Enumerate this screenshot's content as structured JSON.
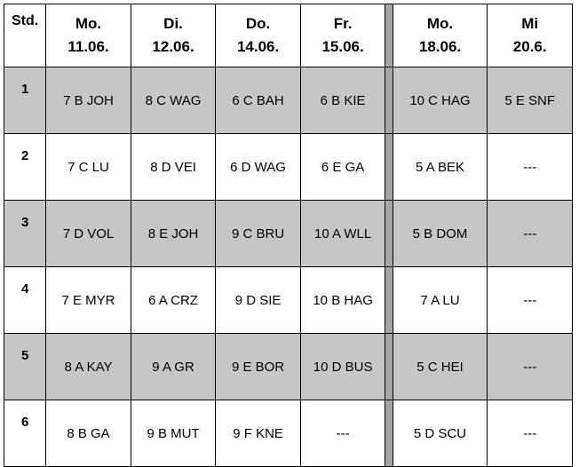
{
  "header": {
    "std": "Std.",
    "days": [
      {
        "name": "Mo.",
        "date": "11.06."
      },
      {
        "name": "Di.",
        "date": "12.06."
      },
      {
        "name": "Do.",
        "date": "14.06."
      },
      {
        "name": "Fr.",
        "date": "15.06."
      },
      {
        "name": "Mo.",
        "date": "18.06."
      },
      {
        "name": "Mi",
        "date": "20.6."
      }
    ]
  },
  "rows": [
    {
      "period": "1",
      "cells": [
        "7 B  JOH",
        "8 C  WAG",
        "6 C  BAH",
        "6 B  KIE",
        "10 C  HAG",
        "5 E  SNF"
      ]
    },
    {
      "period": "2",
      "cells": [
        "7 C  LU",
        "8 D  VEI",
        "6 D  WAG",
        "6 E  GA",
        "5 A  BEK",
        "---"
      ]
    },
    {
      "period": "3",
      "cells": [
        "7 D  VOL",
        "8 E  JOH",
        "9 C  BRU",
        "10 A  WLL",
        "5 B  DOM",
        "---"
      ]
    },
    {
      "period": "4",
      "cells": [
        "7 E  MYR",
        "6 A  CRZ",
        "9 D  SIE",
        "10 B  HAG",
        "7 A  LU",
        "---"
      ]
    },
    {
      "period": "5",
      "cells": [
        "8 A  KAY",
        "9 A  GR",
        "9 E BOR",
        "10 D  BUS",
        "5 C  HEI",
        "---"
      ]
    },
    {
      "period": "6",
      "cells": [
        "8 B  GA",
        "9 B  MUT",
        "9 F  KNE",
        "---",
        "5 D  SCU",
        "---"
      ]
    }
  ]
}
